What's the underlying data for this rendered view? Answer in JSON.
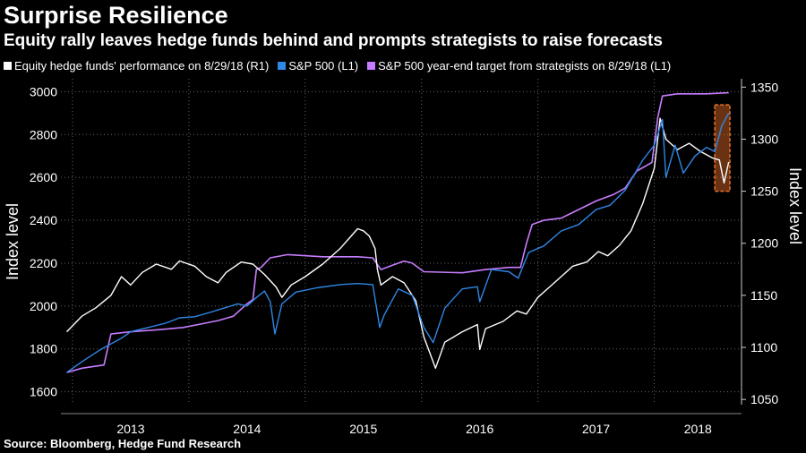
{
  "header": {
    "title": "Surprise Resilience",
    "subtitle": "Equity rally leaves hedge funds behind and prompts strategists to raise forecasts"
  },
  "legend": {
    "items": [
      {
        "label": "Equity hedge funds' performance on 8/29/18 (R1)",
        "color": "#ffffff"
      },
      {
        "label": "S&P 500  (L1)",
        "color": "#2f87e6"
      },
      {
        "label": "S&P 500 year-end target from strategists on 8/29/18 (L1)",
        "color": "#c77dff"
      }
    ]
  },
  "source": "Source: Bloomberg, Hedge Fund Research",
  "colors": {
    "background": "#000000",
    "hedge_funds": "#ffffff",
    "sp500": "#2f87e6",
    "target": "#c77dff",
    "highlight": "#e8702a",
    "grid": "#666666"
  },
  "chart_data": {
    "type": "line",
    "title": "Surprise Resilience",
    "subtitle": "Equity rally leaves hedge funds behind and prompts strategists to raise forecasts",
    "x_axis": {
      "unit": "year",
      "range": [
        2012.9,
        2018.75
      ],
      "tick_labels": [
        "2013",
        "2014",
        "2015",
        "2016",
        "2017",
        "2018"
      ]
    },
    "y_left": {
      "label": "Index level",
      "range": [
        1540,
        3060
      ],
      "ticks": [
        1600,
        1800,
        2000,
        2200,
        2400,
        2600,
        2800,
        3000
      ]
    },
    "y_right": {
      "label": "Index level",
      "range": [
        1045,
        1358
      ],
      "ticks": [
        1050,
        1100,
        1150,
        1200,
        1250,
        1300,
        1350
      ]
    },
    "grid": true,
    "legend_position": "top",
    "series": [
      {
        "name": "Equity hedge funds' performance on 8/29/18 (R1)",
        "axis": "right",
        "points": [
          [
            2012.95,
            1115
          ],
          [
            2013.08,
            1130
          ],
          [
            2013.2,
            1138
          ],
          [
            2013.33,
            1150
          ],
          [
            2013.42,
            1168
          ],
          [
            2013.5,
            1160
          ],
          [
            2013.6,
            1172
          ],
          [
            2013.72,
            1180
          ],
          [
            2013.85,
            1175
          ],
          [
            2013.92,
            1183
          ],
          [
            2014.05,
            1178
          ],
          [
            2014.15,
            1168
          ],
          [
            2014.25,
            1162
          ],
          [
            2014.32,
            1172
          ],
          [
            2014.45,
            1182
          ],
          [
            2014.55,
            1180
          ],
          [
            2014.65,
            1170
          ],
          [
            2014.75,
            1158
          ],
          [
            2014.8,
            1148
          ],
          [
            2014.88,
            1160
          ],
          [
            2015.0,
            1168
          ],
          [
            2015.15,
            1180
          ],
          [
            2015.3,
            1195
          ],
          [
            2015.38,
            1205
          ],
          [
            2015.45,
            1214
          ],
          [
            2015.5,
            1212
          ],
          [
            2015.55,
            1207
          ],
          [
            2015.6,
            1195
          ],
          [
            2015.62,
            1175
          ],
          [
            2015.65,
            1160
          ],
          [
            2015.75,
            1168
          ],
          [
            2015.85,
            1162
          ],
          [
            2015.95,
            1145
          ],
          [
            2016.02,
            1110
          ],
          [
            2016.08,
            1092
          ],
          [
            2016.12,
            1080
          ],
          [
            2016.2,
            1105
          ],
          [
            2016.35,
            1115
          ],
          [
            2016.48,
            1122
          ],
          [
            2016.5,
            1098
          ],
          [
            2016.55,
            1118
          ],
          [
            2016.7,
            1125
          ],
          [
            2016.82,
            1135
          ],
          [
            2016.9,
            1132
          ],
          [
            2016.95,
            1140
          ],
          [
            2017.0,
            1148
          ],
          [
            2017.1,
            1158
          ],
          [
            2017.2,
            1168
          ],
          [
            2017.3,
            1178
          ],
          [
            2017.42,
            1182
          ],
          [
            2017.52,
            1192
          ],
          [
            2017.6,
            1188
          ],
          [
            2017.7,
            1198
          ],
          [
            2017.8,
            1212
          ],
          [
            2017.9,
            1238
          ],
          [
            2018.0,
            1272
          ],
          [
            2018.05,
            1320
          ],
          [
            2018.1,
            1300
          ],
          [
            2018.2,
            1290
          ],
          [
            2018.3,
            1296
          ],
          [
            2018.4,
            1288
          ],
          [
            2018.5,
            1282
          ],
          [
            2018.56,
            1280
          ],
          [
            2018.6,
            1258
          ],
          [
            2018.64,
            1278
          ]
        ]
      },
      {
        "name": "S&P 500  (L1)",
        "axis": "left",
        "points": [
          [
            2012.95,
            1690
          ],
          [
            2013.08,
            1740
          ],
          [
            2013.25,
            1800
          ],
          [
            2013.42,
            1850
          ],
          [
            2013.5,
            1880
          ],
          [
            2013.65,
            1900
          ],
          [
            2013.8,
            1920
          ],
          [
            2013.92,
            1945
          ],
          [
            2014.05,
            1950
          ],
          [
            2014.18,
            1970
          ],
          [
            2014.3,
            1990
          ],
          [
            2014.42,
            2010
          ],
          [
            2014.5,
            2000
          ],
          [
            2014.58,
            2040
          ],
          [
            2014.65,
            2070
          ],
          [
            2014.7,
            2020
          ],
          [
            2014.74,
            1870
          ],
          [
            2014.8,
            2010
          ],
          [
            2014.92,
            2065
          ],
          [
            2015.1,
            2085
          ],
          [
            2015.3,
            2100
          ],
          [
            2015.45,
            2105
          ],
          [
            2015.58,
            2100
          ],
          [
            2015.64,
            1900
          ],
          [
            2015.68,
            1960
          ],
          [
            2015.8,
            2080
          ],
          [
            2015.92,
            2050
          ],
          [
            2016.02,
            1900
          ],
          [
            2016.1,
            1830
          ],
          [
            2016.2,
            1990
          ],
          [
            2016.35,
            2080
          ],
          [
            2016.48,
            2090
          ],
          [
            2016.5,
            2020
          ],
          [
            2016.6,
            2170
          ],
          [
            2016.75,
            2160
          ],
          [
            2016.83,
            2130
          ],
          [
            2016.92,
            2250
          ],
          [
            2017.05,
            2280
          ],
          [
            2017.2,
            2350
          ],
          [
            2017.35,
            2380
          ],
          [
            2017.5,
            2450
          ],
          [
            2017.62,
            2470
          ],
          [
            2017.75,
            2540
          ],
          [
            2017.9,
            2680
          ],
          [
            2018.0,
            2750
          ],
          [
            2018.07,
            2870
          ],
          [
            2018.1,
            2600
          ],
          [
            2018.18,
            2750
          ],
          [
            2018.25,
            2620
          ],
          [
            2018.35,
            2700
          ],
          [
            2018.45,
            2740
          ],
          [
            2018.52,
            2720
          ],
          [
            2018.58,
            2840
          ],
          [
            2018.64,
            2900
          ]
        ]
      },
      {
        "name": "S&P 500 year-end target from strategists on 8/29/18 (L1)",
        "axis": "left",
        "points": [
          [
            2012.95,
            1690
          ],
          [
            2013.08,
            1710
          ],
          [
            2013.27,
            1725
          ],
          [
            2013.33,
            1870
          ],
          [
            2013.5,
            1880
          ],
          [
            2013.75,
            1890
          ],
          [
            2013.95,
            1900
          ],
          [
            2014.12,
            1918
          ],
          [
            2014.25,
            1932
          ],
          [
            2014.38,
            1952
          ],
          [
            2014.5,
            2010
          ],
          [
            2014.55,
            2030
          ],
          [
            2014.58,
            2170
          ],
          [
            2014.62,
            2180
          ],
          [
            2014.7,
            2225
          ],
          [
            2014.85,
            2240
          ],
          [
            2015.15,
            2230
          ],
          [
            2015.45,
            2230
          ],
          [
            2015.58,
            2225
          ],
          [
            2015.65,
            2170
          ],
          [
            2015.75,
            2190
          ],
          [
            2015.85,
            2210
          ],
          [
            2015.92,
            2200
          ],
          [
            2016.02,
            2160
          ],
          [
            2016.35,
            2155
          ],
          [
            2016.55,
            2170
          ],
          [
            2016.75,
            2180
          ],
          [
            2016.85,
            2180
          ],
          [
            2016.9,
            2290
          ],
          [
            2016.95,
            2380
          ],
          [
            2017.05,
            2400
          ],
          [
            2017.2,
            2410
          ],
          [
            2017.35,
            2450
          ],
          [
            2017.5,
            2490
          ],
          [
            2017.65,
            2520
          ],
          [
            2017.75,
            2550
          ],
          [
            2017.85,
            2630
          ],
          [
            2017.98,
            2670
          ],
          [
            2018.03,
            2880
          ],
          [
            2018.07,
            2980
          ],
          [
            2018.2,
            2990
          ],
          [
            2018.45,
            2990
          ],
          [
            2018.64,
            2995
          ]
        ]
      }
    ],
    "highlight": {
      "x_range": [
        2018.52,
        2018.65
      ],
      "y_range_right": [
        1250,
        1333
      ]
    }
  }
}
